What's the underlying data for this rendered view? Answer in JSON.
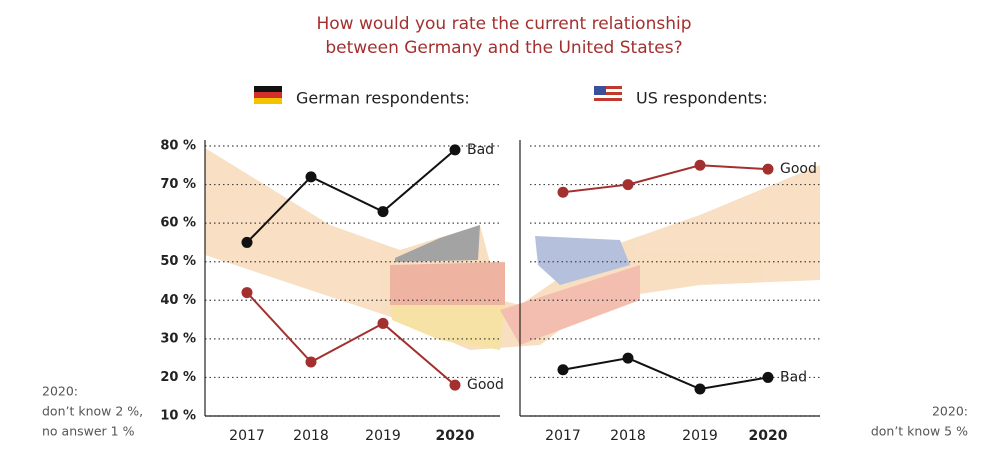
{
  "title": [
    "How would you rate the current relationship",
    "between Germany and the United States?"
  ],
  "chart_data": [
    {
      "type": "line",
      "subtitle": "German respondents:",
      "categories": [
        "2017",
        "2018",
        "2019",
        "2020"
      ],
      "ylim": [
        10,
        80
      ],
      "yticks": [
        {
          "value": 10,
          "label": "10 %"
        },
        {
          "value": 20,
          "label": "20 %"
        },
        {
          "value": 30,
          "label": "30 %"
        },
        {
          "value": 40,
          "label": "40 %"
        },
        {
          "value": 50,
          "label": "50 %"
        },
        {
          "value": 60,
          "label": "60 %"
        },
        {
          "value": 70,
          "label": "70 %"
        },
        {
          "value": 80,
          "label": "80 %"
        }
      ],
      "grid": true,
      "series": [
        {
          "name": "Good",
          "color": "#a3302f",
          "values": [
            42,
            24,
            34,
            18
          ]
        },
        {
          "name": "Bad",
          "color": "#111111",
          "values": [
            55,
            72,
            63,
            79
          ]
        }
      ],
      "note": [
        "2020:",
        "don’t know 2 %,",
        "no answer 1 %"
      ]
    },
    {
      "type": "line",
      "subtitle": "US respondents:",
      "categories": [
        "2017",
        "2018",
        "2019",
        "2020"
      ],
      "ylim": [
        10,
        80
      ],
      "yticks": [
        10,
        20,
        30,
        40,
        50,
        60,
        70,
        80
      ],
      "grid": true,
      "series": [
        {
          "name": "Good",
          "color": "#a3302f",
          "values": [
            68,
            70,
            75,
            74
          ]
        },
        {
          "name": "Bad",
          "color": "#111111",
          "values": [
            22,
            25,
            17,
            20
          ]
        }
      ],
      "note": [
        "2020:",
        "don’t know 5 %"
      ]
    }
  ]
}
